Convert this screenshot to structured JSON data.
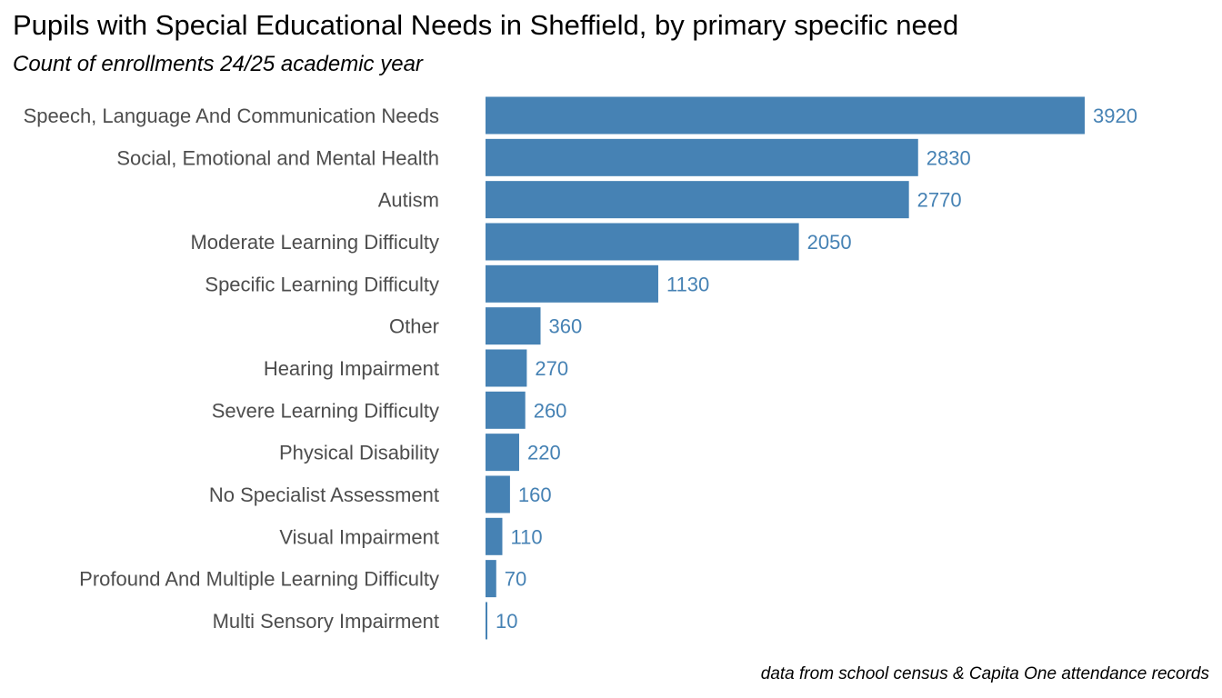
{
  "colors": {
    "bar": "#4682b4",
    "label": "#4682b4",
    "axis_text": "#4d4d4d"
  },
  "chart_data": {
    "type": "bar",
    "orientation": "horizontal",
    "title": "Pupils with Special Educational Needs in Sheffield, by primary specific need",
    "subtitle": "Count of enrollments 24/25 academic year",
    "caption": "data from school census & Capita One attendance records",
    "xlabel": "",
    "ylabel": "",
    "grid": false,
    "categories": [
      "Speech, Language And Communication Needs",
      "Social, Emotional and Mental Health",
      "Autism",
      "Moderate Learning Difficulty",
      "Specific Learning Difficulty",
      "Other",
      "Hearing Impairment",
      "Severe Learning Difficulty",
      "Physical Disability",
      "No Specialist Assessment",
      "Visual Impairment",
      "Profound And Multiple Learning Difficulty",
      "Multi Sensory Impairment"
    ],
    "values": [
      3920,
      2830,
      2770,
      2050,
      1130,
      360,
      270,
      260,
      220,
      160,
      110,
      70,
      10
    ]
  }
}
